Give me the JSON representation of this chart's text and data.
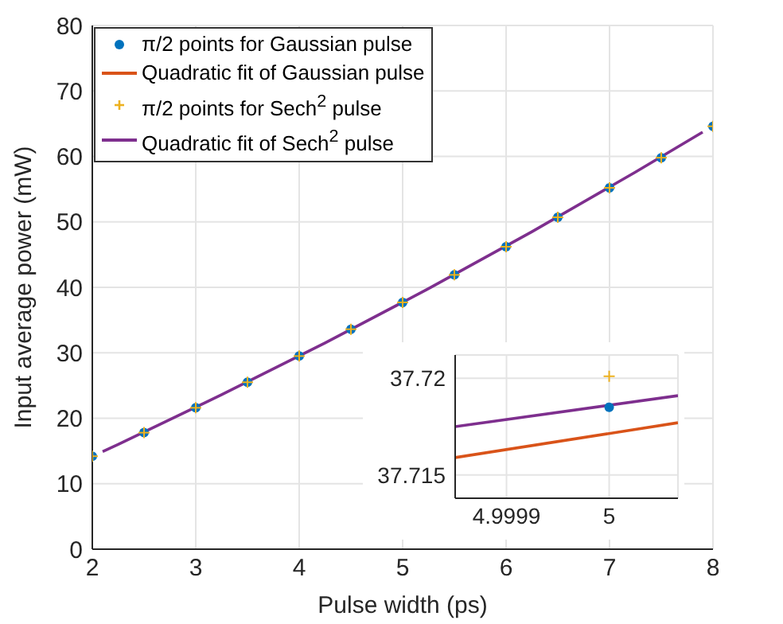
{
  "chart_data": [
    {
      "type": "line",
      "xlabel": "Pulse width (ps)",
      "ylabel": "Input average power (mW)",
      "xlim": [
        2,
        8
      ],
      "ylim": [
        0,
        80
      ],
      "xticks": [
        2,
        3,
        4,
        5,
        6,
        7,
        8
      ],
      "yticks": [
        0,
        10,
        20,
        30,
        40,
        50,
        60,
        70,
        80
      ],
      "grid": true,
      "legend": "top left",
      "series": [
        {
          "type": "scatter",
          "name": "π/2 points for Gaussian pulse",
          "color": "#0072bd",
          "marker": "circle",
          "x": [
            2,
            2.5,
            3,
            3.5,
            4,
            4.5,
            5,
            5.5,
            6,
            6.5,
            7,
            7.5,
            8
          ],
          "values": [
            14.2,
            17.8,
            21.6,
            25.5,
            29.5,
            33.6,
            37.7,
            41.9,
            46.2,
            50.7,
            55.2,
            59.8,
            64.6
          ]
        },
        {
          "type": "line",
          "name": "Quadratic fit of Gaussian pulse",
          "color": "#d95319"
        },
        {
          "type": "scatter",
          "name": "π/2 points for Sech$^{2}$ pulse",
          "color": "#edb120",
          "marker": "cross",
          "x": [
            2,
            2.5,
            3,
            3.5,
            4,
            4.5,
            5,
            5.5,
            6,
            6.5,
            7,
            7.5,
            8
          ],
          "values": [
            14.2,
            17.8,
            21.6,
            25.5,
            29.5,
            33.6,
            37.7,
            41.9,
            46.2,
            50.7,
            55.2,
            59.8,
            64.6
          ]
        },
        {
          "type": "line",
          "name": "Quadratic fit of Sech$^{2}$ pulse",
          "color": "#7e2f8e",
          "x": [
            2.1,
            2.25,
            3.25,
            4.25,
            5.25,
            6.25,
            7.25,
            7.9
          ],
          "values": [
            14.9,
            16.0,
            23.6,
            31.5,
            39.8,
            48.5,
            57.6,
            63.7
          ]
        }
      ]
    },
    {
      "type": "line",
      "xlim": [
        4.99985,
        5.000067
      ],
      "ylim": [
        37.7138,
        37.7212
      ],
      "xticks": [
        4.9999,
        5
      ],
      "yticks": [
        37.715,
        37.72
      ],
      "grid": true,
      "series": [
        {
          "type": "scatter",
          "color": "#0072bd",
          "marker": "circle",
          "x": [
            5
          ],
          "values": [
            37.7185
          ]
        },
        {
          "type": "line",
          "color": "#d95319",
          "x": [
            4.99985,
            5.000067
          ],
          "values": [
            37.7159,
            37.7177
          ]
        },
        {
          "type": "scatter",
          "color": "#edb120",
          "marker": "cross",
          "x": [
            5
          ],
          "values": [
            37.7201
          ]
        },
        {
          "type": "line",
          "color": "#7e2f8e",
          "x": [
            4.99985,
            5.000067
          ],
          "values": [
            37.7175,
            37.7191
          ]
        }
      ]
    }
  ]
}
